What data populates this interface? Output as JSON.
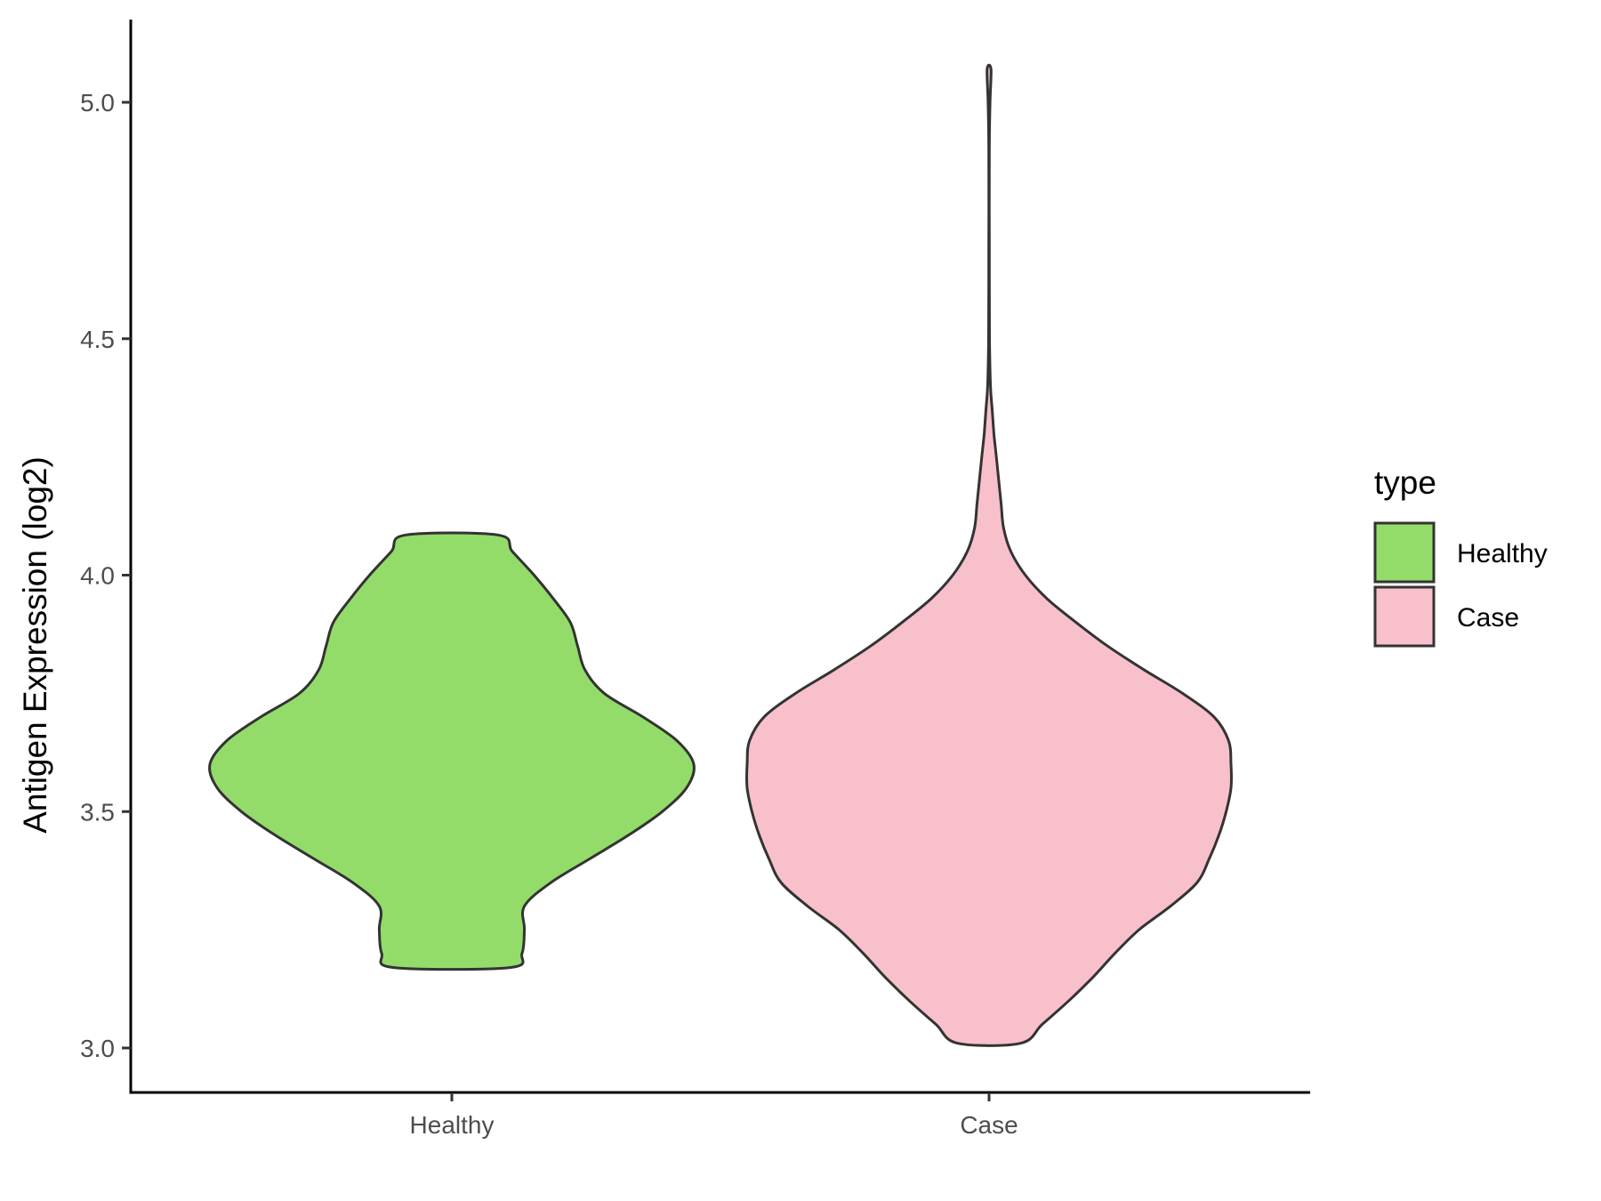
{
  "chart_data": {
    "type": "violin",
    "ylabel": "Antigen Expression (log2)",
    "xlabel": "",
    "ylim": [
      2.91,
      5.17
    ],
    "yticks": [
      "3.0",
      "3.5",
      "4.0",
      "4.5",
      "5.0"
    ],
    "grid": false,
    "categories": [
      "Healthy",
      "Case"
    ],
    "legend": {
      "title": "type",
      "placement": "right",
      "entries": [
        "Healthy",
        "Case"
      ]
    },
    "series": [
      {
        "name": "Healthy",
        "color": "#93DC6A",
        "min": 3.17,
        "max": 4.085,
        "density_profile": [
          {
            "y": 3.17,
            "w": 0.24
          },
          {
            "y": 3.2,
            "w": 0.29
          },
          {
            "y": 3.25,
            "w": 0.3
          },
          {
            "y": 3.3,
            "w": 0.3
          },
          {
            "y": 3.35,
            "w": 0.41
          },
          {
            "y": 3.4,
            "w": 0.57
          },
          {
            "y": 3.45,
            "w": 0.73
          },
          {
            "y": 3.5,
            "w": 0.87
          },
          {
            "y": 3.55,
            "w": 0.97
          },
          {
            "y": 3.6,
            "w": 1.0
          },
          {
            "y": 3.65,
            "w": 0.93
          },
          {
            "y": 3.7,
            "w": 0.79
          },
          {
            "y": 3.75,
            "w": 0.63
          },
          {
            "y": 3.8,
            "w": 0.55
          },
          {
            "y": 3.85,
            "w": 0.52
          },
          {
            "y": 3.9,
            "w": 0.49
          },
          {
            "y": 3.95,
            "w": 0.42
          },
          {
            "y": 4.0,
            "w": 0.34
          },
          {
            "y": 4.05,
            "w": 0.25
          },
          {
            "y": 4.085,
            "w": 0.19
          }
        ]
      },
      {
        "name": "Case",
        "color": "#F7C0CB",
        "min": 3.01,
        "max": 5.07,
        "density_profile": [
          {
            "y": 3.01,
            "w": 0.13
          },
          {
            "y": 3.05,
            "w": 0.22
          },
          {
            "y": 3.1,
            "w": 0.33
          },
          {
            "y": 3.15,
            "w": 0.43
          },
          {
            "y": 3.2,
            "w": 0.52
          },
          {
            "y": 3.25,
            "w": 0.62
          },
          {
            "y": 3.3,
            "w": 0.75
          },
          {
            "y": 3.35,
            "w": 0.86
          },
          {
            "y": 3.4,
            "w": 0.91
          },
          {
            "y": 3.45,
            "w": 0.95
          },
          {
            "y": 3.5,
            "w": 0.98
          },
          {
            "y": 3.55,
            "w": 1.0
          },
          {
            "y": 3.6,
            "w": 1.0
          },
          {
            "y": 3.65,
            "w": 0.99
          },
          {
            "y": 3.7,
            "w": 0.93
          },
          {
            "y": 3.75,
            "w": 0.8
          },
          {
            "y": 3.8,
            "w": 0.64
          },
          {
            "y": 3.85,
            "w": 0.49
          },
          {
            "y": 3.9,
            "w": 0.36
          },
          {
            "y": 3.95,
            "w": 0.24
          },
          {
            "y": 4.0,
            "w": 0.15
          },
          {
            "y": 4.05,
            "w": 0.09
          },
          {
            "y": 4.1,
            "w": 0.06
          },
          {
            "y": 4.15,
            "w": 0.05
          },
          {
            "y": 4.2,
            "w": 0.04
          },
          {
            "y": 4.25,
            "w": 0.03
          },
          {
            "y": 4.3,
            "w": 0.02
          },
          {
            "y": 4.35,
            "w": 0.013
          },
          {
            "y": 4.4,
            "w": 0.006
          },
          {
            "y": 4.5,
            "w": 0.002
          },
          {
            "y": 4.7,
            "w": 0.001
          },
          {
            "y": 4.9,
            "w": 0.001
          },
          {
            "y": 5.0,
            "w": 0.004
          },
          {
            "y": 5.07,
            "w": 0.008
          }
        ]
      }
    ]
  }
}
